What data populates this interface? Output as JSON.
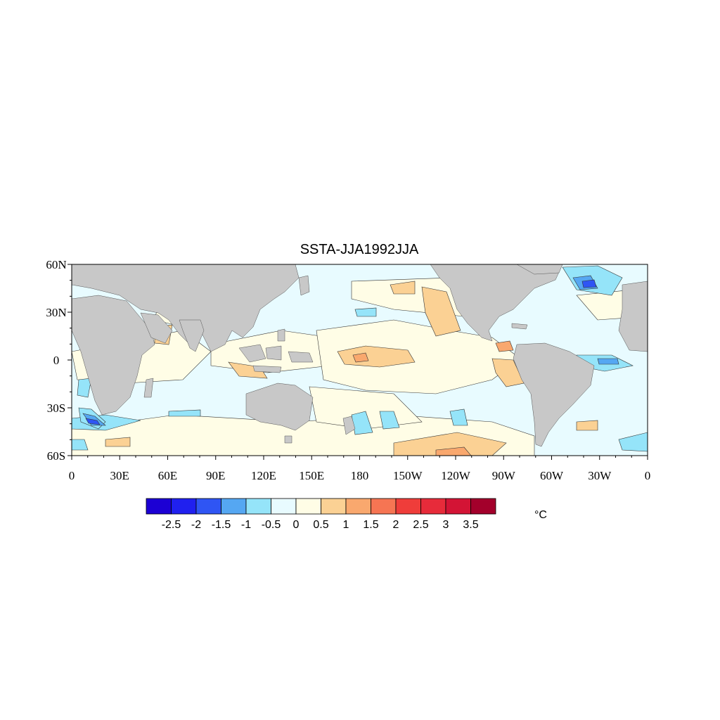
{
  "title": "SSTA-JJA1992JJA",
  "units": "°C",
  "colors": {
    "land": "#c8c8c8",
    "frame": "#000000",
    "contour": "#000000"
  },
  "map": {
    "projection": "cylindrical-equidistant",
    "lon_range": [
      0,
      360
    ],
    "lat_range": [
      -60,
      60
    ],
    "x_ticks": [
      {
        "lon": 0,
        "label": "0"
      },
      {
        "lon": 30,
        "label": "30E"
      },
      {
        "lon": 60,
        "label": "60E"
      },
      {
        "lon": 90,
        "label": "90E"
      },
      {
        "lon": 120,
        "label": "120E"
      },
      {
        "lon": 150,
        "label": "150E"
      },
      {
        "lon": 180,
        "label": "180"
      },
      {
        "lon": 210,
        "label": "150W"
      },
      {
        "lon": 240,
        "label": "120W"
      },
      {
        "lon": 270,
        "label": "90W"
      },
      {
        "lon": 300,
        "label": "60W"
      },
      {
        "lon": 330,
        "label": "30W"
      },
      {
        "lon": 360,
        "label": "0"
      }
    ],
    "y_ticks": [
      {
        "lat": 60,
        "label": "60N"
      },
      {
        "lat": 30,
        "label": "30N"
      },
      {
        "lat": 0,
        "label": "0"
      },
      {
        "lat": -30,
        "label": "30S"
      },
      {
        "lat": -60,
        "label": "60S"
      }
    ]
  },
  "colorbar": {
    "labels": [
      "-2.5",
      "-2",
      "-1.5",
      "-1",
      "-0.5",
      "0",
      "0.5",
      "1",
      "1.5",
      "2",
      "2.5",
      "3",
      "3.5"
    ],
    "colors": [
      "#1c00d4",
      "#2020ef",
      "#2f55f4",
      "#55a7f2",
      "#95e4f9",
      "#e8fbff",
      "#fffde6",
      "#fbd194",
      "#f9a86e",
      "#f67553",
      "#ef3d3a",
      "#e72b3a",
      "#d31435",
      "#a3002b"
    ]
  }
}
